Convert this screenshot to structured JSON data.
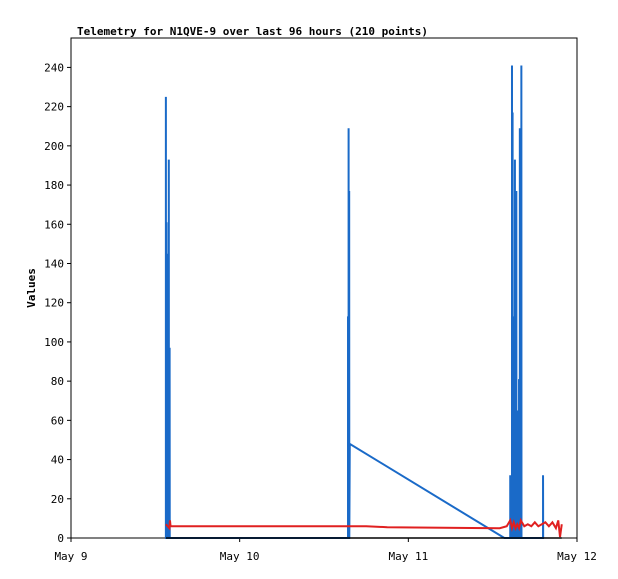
{
  "chart_data": {
    "type": "line",
    "title": "Telemetry for N1QVE-9 over last 96 hours (210 points)",
    "xlabel": "",
    "ylabel": "Values",
    "xlim": [
      "May 9",
      "May 12"
    ],
    "x_ticks": [
      "May 9",
      "May 10",
      "May 11",
      "May 12"
    ],
    "ylim": [
      0,
      255
    ],
    "y_ticks": [
      0,
      20,
      40,
      60,
      80,
      100,
      120,
      140,
      160,
      180,
      200,
      220,
      240
    ],
    "grid": false,
    "legend": "none",
    "series": [
      {
        "color": "#1a6ac8",
        "points": [
          [
            "May 9 13:30",
            0
          ],
          [
            "May 9 13:30",
            225
          ],
          [
            "May 9 13:31",
            0
          ],
          [
            "May 9 13:35",
            0
          ],
          [
            "May 9 13:35",
            161
          ],
          [
            "May 9 13:36",
            0
          ],
          [
            "May 9 13:42",
            0
          ],
          [
            "May 9 13:42",
            145
          ],
          [
            "May 9 13:43",
            0
          ],
          [
            "May 9 13:48",
            0
          ],
          [
            "May 9 13:48",
            97
          ],
          [
            "May 9 13:49",
            0
          ],
          [
            "May 9 13:55",
            0
          ],
          [
            "May 9 13:55",
            193
          ],
          [
            "May 9 13:56",
            0
          ],
          [
            "May 9 14:02",
            0
          ],
          [
            "May 9 14:02",
            97
          ],
          [
            "May 9 14:03",
            0
          ],
          [
            "May 10 15:25",
            0
          ],
          [
            "May 10 15:25",
            113
          ],
          [
            "May 10 15:26",
            0
          ],
          [
            "May 10 15:30",
            0
          ],
          [
            "May 10 15:30",
            209
          ],
          [
            "May 10 15:31",
            0
          ],
          [
            "May 10 15:35",
            0
          ],
          [
            "May 10 15:35",
            177
          ],
          [
            "May 10 15:36",
            0
          ],
          [
            "May 10 15:40",
            48
          ],
          [
            "May 11 13:40",
            0
          ],
          [
            "May 11 14:30",
            0
          ],
          [
            "May 11 14:30",
            32
          ],
          [
            "May 11 14:31",
            0
          ],
          [
            "May 11 14:45",
            0
          ],
          [
            "May 11 14:45",
            241
          ],
          [
            "May 11 14:46",
            0
          ],
          [
            "May 11 14:50",
            0
          ],
          [
            "May 11 14:50",
            217
          ],
          [
            "May 11 14:51",
            0
          ],
          [
            "May 11 14:58",
            0
          ],
          [
            "May 11 14:58",
            113
          ],
          [
            "May 11 14:59",
            0
          ],
          [
            "May 11 15:05",
            0
          ],
          [
            "May 11 15:05",
            27
          ],
          [
            "May 11 15:06",
            0
          ],
          [
            "May 11 15:10",
            0
          ],
          [
            "May 11 15:10",
            193
          ],
          [
            "May 11 15:11",
            0
          ],
          [
            "May 11 15:15",
            0
          ],
          [
            "May 11 15:15",
            97
          ],
          [
            "May 11 15:16",
            0
          ],
          [
            "May 11 15:22",
            0
          ],
          [
            "May 11 15:22",
            177
          ],
          [
            "May 11 15:23",
            0
          ],
          [
            "May 11 15:28",
            0
          ],
          [
            "May 11 15:28",
            65
          ],
          [
            "May 11 15:29",
            0
          ],
          [
            "May 11 15:36",
            0
          ],
          [
            "May 11 15:36",
            41
          ],
          [
            "May 11 15:37",
            0
          ],
          [
            "May 11 15:45",
            0
          ],
          [
            "May 11 15:45",
            81
          ],
          [
            "May 11 15:46",
            0
          ],
          [
            "May 11 15:52",
            0
          ],
          [
            "May 11 15:52",
            209
          ],
          [
            "May 11 15:53",
            0
          ],
          [
            "May 11 16:00",
            0
          ],
          [
            "May 11 16:00",
            121
          ],
          [
            "May 11 16:01",
            0
          ],
          [
            "May 11 16:05",
            0
          ],
          [
            "May 11 16:05",
            241
          ],
          [
            "May 11 16:06",
            0
          ],
          [
            "May 11 19:10",
            0
          ],
          [
            "May 11 19:10",
            32
          ],
          [
            "May 11 19:11",
            0
          ]
        ]
      },
      {
        "color": "#e02020",
        "points": [
          [
            "May 9 13:30",
            7
          ],
          [
            "May 9 14:00",
            5
          ],
          [
            "May 9 14:05",
            9
          ],
          [
            "May 9 14:10",
            6
          ],
          [
            "May 10 15:30",
            6
          ],
          [
            "May 10 18:00",
            6
          ],
          [
            "May 10 21:00",
            5.5
          ],
          [
            "May 11 13:00",
            5
          ],
          [
            "May 11 14:00",
            6
          ],
          [
            "May 11 14:30",
            9
          ],
          [
            "May 11 14:45",
            5
          ],
          [
            "May 11 15:00",
            8
          ],
          [
            "May 11 15:15",
            5
          ],
          [
            "May 11 15:30",
            7
          ],
          [
            "May 11 15:45",
            5
          ],
          [
            "May 11 16:00",
            9
          ],
          [
            "May 11 16:30",
            6
          ],
          [
            "May 11 17:00",
            7
          ],
          [
            "May 11 17:30",
            6
          ],
          [
            "May 11 18:00",
            8
          ],
          [
            "May 11 18:30",
            6
          ],
          [
            "May 11 19:00",
            7
          ],
          [
            "May 11 19:30",
            8
          ],
          [
            "May 11 20:00",
            6
          ],
          [
            "May 11 20:30",
            8
          ],
          [
            "May 11 21:00",
            5
          ],
          [
            "May 11 21:20",
            9
          ],
          [
            "May 11 21:35",
            0.5
          ],
          [
            "May 11 21:50",
            7
          ]
        ]
      },
      {
        "color": "#000000",
        "points": [
          [
            "May 9 13:30",
            0
          ],
          [
            "May 11 21:50",
            0
          ]
        ]
      }
    ]
  }
}
